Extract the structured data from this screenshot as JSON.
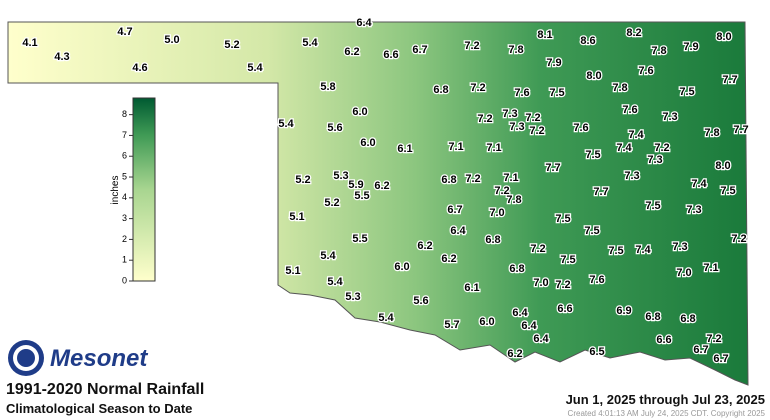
{
  "title": "1991-2020 Normal Rainfall",
  "subtitle": "Climatological Season to Date",
  "logo": "Mesonet",
  "date_range": "Jun 1, 2025 through Jul 23, 2025",
  "footer": "Created 4:01:13 AM July 24, 2025 CDT. Copyright 2025",
  "colorbar": {
    "label": "inches",
    "range": [
      0,
      8.8
    ],
    "ticks": [
      0,
      1,
      2,
      3,
      4,
      5,
      6,
      7,
      8
    ]
  },
  "stations": [
    "4.1",
    "4.3",
    "4.7",
    "5.0",
    "4.6",
    "5.2",
    "5.4",
    "5.4",
    "6.4",
    "6.2",
    "6.6",
    "6.7",
    "7.2",
    "7.8",
    "8.1",
    "8.6",
    "8.2",
    "7.8",
    "7.9",
    "8.0",
    "7.9",
    "8.0",
    "7.6",
    "7.7",
    "5.8",
    "6.8",
    "7.2",
    "7.6",
    "7.5",
    "7.8",
    "7.5",
    "6.0",
    "7.6",
    "7.3",
    "5.4",
    "5.6",
    "7.2",
    "7.3",
    "7.2",
    "7.3",
    "7.2",
    "7.6",
    "7.4",
    "7.8",
    "7.7",
    "6.0",
    "6.1",
    "7.1",
    "7.1",
    "7.5",
    "7.4",
    "7.2",
    "7.3",
    "8.0",
    "7.7",
    "5.2",
    "5.3",
    "5.9",
    "6.2",
    "6.8",
    "7.2",
    "7.1",
    "7.2",
    "7.3",
    "7.4",
    "7.5",
    "5.5",
    "5.2",
    "7.7",
    "7.8",
    "6.7",
    "7.0",
    "7.5",
    "7.3",
    "5.1",
    "7.5",
    "6.4",
    "7.5",
    "6.8",
    "7.2",
    "5.5",
    "6.2",
    "7.2",
    "7.5",
    "7.4",
    "7.3",
    "5.4",
    "6.2",
    "7.5",
    "6.0",
    "5.1",
    "6.8",
    "7.0",
    "7.1",
    "5.4",
    "7.0",
    "7.2",
    "7.6",
    "6.1",
    "5.3",
    "5.6",
    "6.4",
    "6.6",
    "6.9",
    "6.8",
    "6.8",
    "5.4",
    "5.7",
    "6.0",
    "6.4",
    "6.4",
    "6.6",
    "7.2",
    "6.2",
    "6.5",
    "6.7",
    "6.7"
  ]
}
